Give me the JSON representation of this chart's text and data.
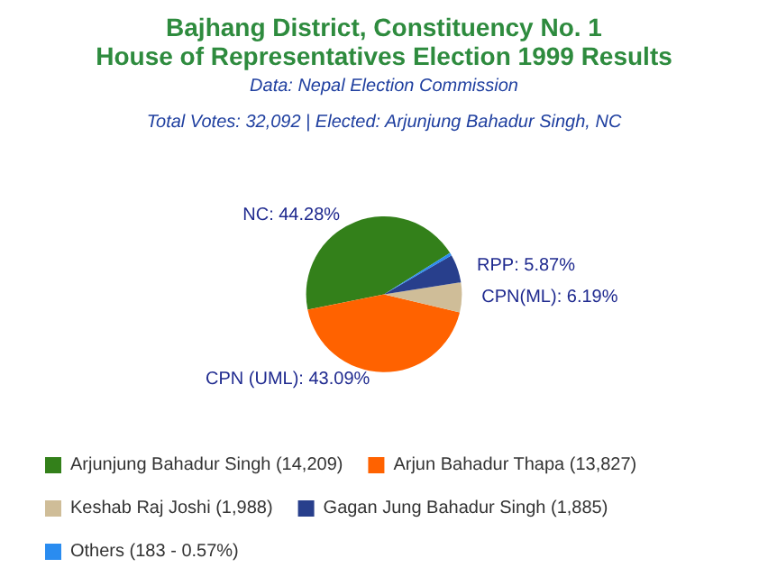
{
  "chart_data": {
    "type": "pie",
    "title": "Bajhang District, Constituency No. 1\nHouse of Representatives Election 1999 Results",
    "subtitle": "Data: Nepal Election Commission",
    "annotations": [
      "Total Votes: 32,092 | Elected: Arjunjung Bahadur Singh, NC"
    ],
    "categories": [
      "Arjunjung Bahadur Singh (14,209)",
      "Arjun Bahadur Thapa (13,827)",
      "Keshab Raj Joshi (1,988)",
      "Gagan Jung Bahadur Singh (1,885)",
      "Others (183 - 0.57%)"
    ],
    "values": [
      44.28,
      43.09,
      6.19,
      5.87,
      0.57
    ],
    "value_labels": [
      "NC: 44.28%",
      "CPN (UML): 43.09%",
      "CPN(ML): 6.19%",
      "RPP: 5.87%",
      null
    ],
    "colors": [
      "#33801a",
      "#ff6200",
      "#cfbd98",
      "#283f8c",
      "#2a8cf0"
    ],
    "legend": "bottom"
  }
}
